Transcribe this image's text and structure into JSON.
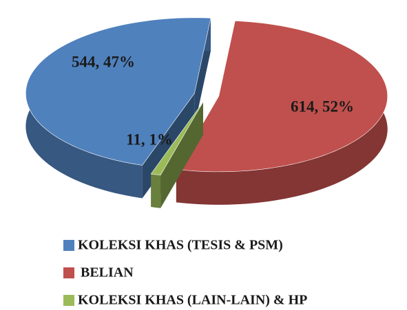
{
  "chart_data": {
    "type": "pie",
    "categories": [
      "KOLEKSI KHAS (TESIS & PSM)",
      "BELIAN",
      "KOLEKSI KHAS (LAIN-LAIN) & HP"
    ],
    "values": [
      544,
      614,
      11
    ],
    "value_labels": [
      "544, 47%",
      "614, 52%",
      "11, 1%"
    ],
    "colors": [
      "#4f81bd",
      "#c0504d",
      "#9bbb59"
    ],
    "legend": "bottom"
  }
}
